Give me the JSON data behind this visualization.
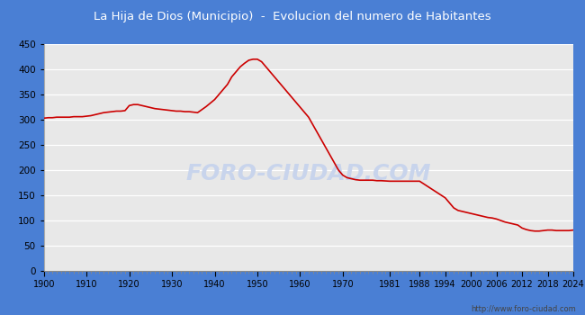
{
  "title": "La Hija de Dios (Municipio)  -  Evolucion del numero de Habitantes",
  "title_bg_color": "#4a7fd4",
  "title_text_color": "#ffffff",
  "plot_bg_color": "#e8e8e8",
  "outer_bg_color": "#4a7fd4",
  "line_color": "#cc0000",
  "line_width": 1.2,
  "watermark_text": "FORO-CIUDAD.COM",
  "watermark_color": "#c8d4ec",
  "url_text": "http://www.foro-ciudad.com",
  "ylim": [
    0,
    450
  ],
  "yticks": [
    0,
    50,
    100,
    150,
    200,
    250,
    300,
    350,
    400,
    450
  ],
  "xticks": [
    1900,
    1910,
    1920,
    1930,
    1940,
    1950,
    1960,
    1970,
    1981,
    1988,
    1994,
    2000,
    2006,
    2012,
    2018,
    2024
  ],
  "years": [
    1900,
    1901,
    1902,
    1903,
    1904,
    1905,
    1906,
    1907,
    1908,
    1909,
    1910,
    1911,
    1912,
    1913,
    1914,
    1915,
    1916,
    1917,
    1918,
    1919,
    1920,
    1921,
    1922,
    1923,
    1924,
    1925,
    1926,
    1927,
    1928,
    1929,
    1930,
    1931,
    1932,
    1933,
    1934,
    1935,
    1936,
    1937,
    1938,
    1939,
    1940,
    1941,
    1942,
    1943,
    1944,
    1945,
    1946,
    1947,
    1948,
    1949,
    1950,
    1951,
    1952,
    1953,
    1954,
    1955,
    1956,
    1957,
    1958,
    1959,
    1960,
    1961,
    1962,
    1963,
    1964,
    1965,
    1966,
    1967,
    1968,
    1969,
    1970,
    1971,
    1972,
    1973,
    1974,
    1975,
    1976,
    1977,
    1978,
    1979,
    1981,
    1988,
    1994,
    1995,
    1996,
    1997,
    1998,
    1999,
    2000,
    2001,
    2002,
    2003,
    2004,
    2005,
    2006,
    2007,
    2008,
    2009,
    2010,
    2011,
    2012,
    2013,
    2014,
    2015,
    2016,
    2017,
    2018,
    2019,
    2020,
    2021,
    2022,
    2023,
    2024
  ],
  "population": [
    303,
    304,
    304,
    305,
    305,
    305,
    305,
    306,
    306,
    306,
    307,
    308,
    310,
    312,
    314,
    315,
    316,
    317,
    317,
    318,
    328,
    330,
    330,
    328,
    326,
    324,
    322,
    321,
    320,
    319,
    318,
    317,
    317,
    316,
    316,
    315,
    314,
    320,
    326,
    333,
    340,
    350,
    360,
    370,
    385,
    395,
    405,
    412,
    418,
    420,
    420,
    415,
    405,
    395,
    385,
    375,
    365,
    355,
    345,
    335,
    325,
    315,
    305,
    290,
    275,
    260,
    245,
    230,
    215,
    200,
    190,
    185,
    183,
    181,
    180,
    180,
    180,
    180,
    179,
    179,
    178,
    178,
    145,
    135,
    125,
    120,
    118,
    116,
    114,
    112,
    110,
    108,
    106,
    105,
    103,
    100,
    97,
    95,
    93,
    91,
    85,
    82,
    80,
    79,
    79,
    80,
    81,
    81,
    80,
    80,
    80,
    80,
    81
  ]
}
